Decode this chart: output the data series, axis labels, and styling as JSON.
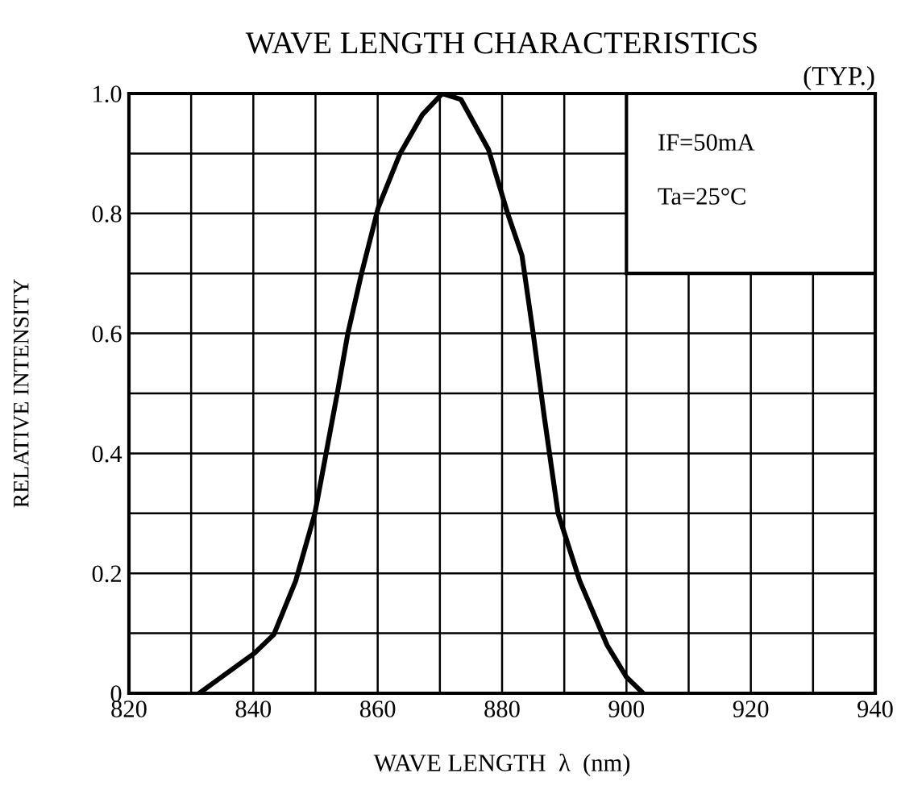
{
  "chart_data": {
    "type": "line",
    "title": "WAVE LENGTH CHARACTERISTICS",
    "subtitle": "(TYP.)",
    "xlabel": "WAVE LENGTH  λ  (nm)",
    "ylabel": "RELATIVE INTENSITY",
    "annotations": [
      "IF=50mA",
      "Ta=25°C"
    ],
    "series": [
      {
        "color": "#000000",
        "x": [
          831.3,
          840.2,
          843.3,
          846.8,
          849.9,
          851.7,
          853.5,
          855.2,
          857.4,
          860.1,
          863.6,
          867.2,
          870.4,
          873.4,
          877.8,
          880.9,
          883.2,
          885.0,
          886.8,
          889.0,
          892.5,
          896.9,
          900.0,
          902.7
        ],
        "values": [
          0,
          0.067,
          0.098,
          0.187,
          0.3,
          0.4,
          0.5,
          0.6,
          0.7,
          0.81,
          0.9,
          0.965,
          1.0,
          0.99,
          0.907,
          0.8,
          0.73,
          0.6,
          0.46,
          0.3,
          0.187,
          0.08,
          0.027,
          0
        ]
      }
    ],
    "xlim": [
      820,
      940
    ],
    "ylim": [
      0,
      1.0
    ],
    "xticks": [
      820,
      {
        "value": 830,
        "label": null
      },
      840,
      {
        "value": 850,
        "label": null
      },
      860,
      {
        "value": 870,
        "label": null
      },
      880,
      {
        "value": 890,
        "label": null
      },
      900,
      {
        "value": 910,
        "label": null
      },
      920,
      {
        "value": 930,
        "label": null
      },
      940
    ],
    "yticks": [
      {
        "value": 0,
        "label": "0"
      },
      {
        "value": 0.1,
        "label": null
      },
      0.2,
      {
        "value": 0.3,
        "label": null
      },
      0.4,
      {
        "value": 0.5,
        "label": null
      },
      0.6,
      {
        "value": 0.7,
        "label": null
      },
      0.8,
      {
        "value": 0.9,
        "label": null
      },
      {
        "value": 1.0,
        "label": "1.0"
      }
    ],
    "grid": true,
    "marker": "none",
    "line_style": "solid",
    "legend": false
  }
}
